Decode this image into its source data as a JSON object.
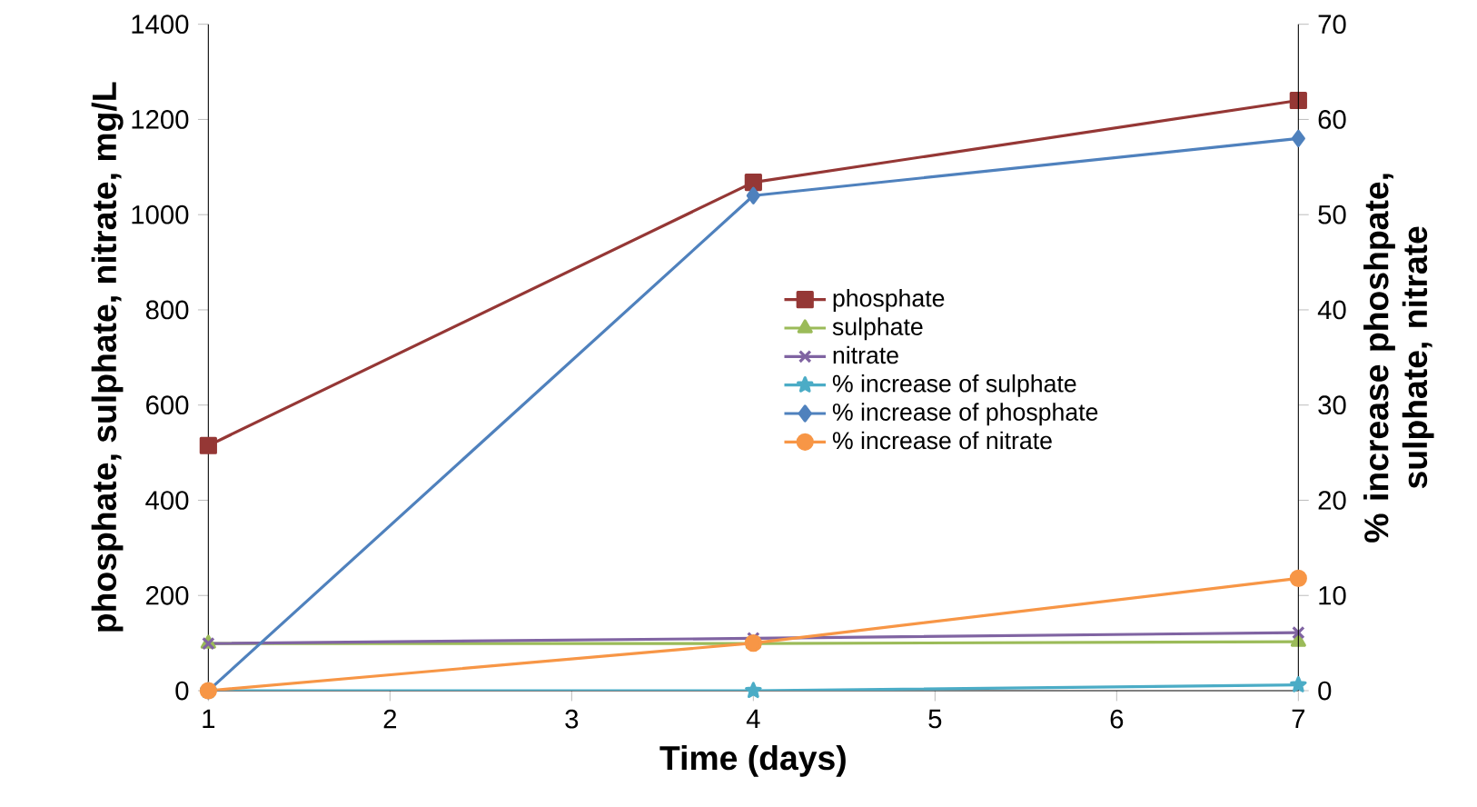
{
  "chart_data": {
    "type": "line",
    "xlabel": "Time (days)",
    "ylabel": "phosphate,  sulphate,  nitrate,  mg/L",
    "y2label": "% increase phoshpate, sulphate, nitrate",
    "xlim": [
      1,
      7
    ],
    "xticks": [
      1,
      2,
      3,
      4,
      5,
      6,
      7
    ],
    "ylim": [
      0,
      1400
    ],
    "yticks": [
      0,
      200,
      400,
      600,
      800,
      1000,
      1200,
      1400
    ],
    "y2lim": [
      0,
      70
    ],
    "y2ticks": [
      0,
      10,
      20,
      30,
      40,
      50,
      60,
      70
    ],
    "grid": false,
    "legend": "right",
    "line_style": "solid",
    "series": [
      {
        "name": "phosphate",
        "color": "#953735",
        "marker": "square",
        "axis": "y",
        "x": [
          1,
          4,
          7
        ],
        "values": [
          515,
          1068,
          1240
        ]
      },
      {
        "name": "sulphate",
        "color": "#9bbb59",
        "marker": "triangle",
        "axis": "y",
        "x": [
          1,
          4,
          7
        ],
        "values": [
          99,
          99,
          103
        ]
      },
      {
        "name": "nitrate",
        "color": "#8064a2",
        "marker": "cross",
        "axis": "y",
        "x": [
          1,
          4,
          7
        ],
        "values": [
          99,
          110,
          122
        ]
      },
      {
        "name": "% increase of sulphate",
        "color": "#4bacc6",
        "marker": "star",
        "axis": "y2",
        "x": [
          1,
          4,
          7
        ],
        "values": [
          0,
          0,
          0.6
        ]
      },
      {
        "name": "% increase of  phosphate",
        "color": "#4f81bd",
        "marker": "diamond",
        "axis": "y2",
        "x": [
          1,
          4,
          7
        ],
        "values": [
          0,
          52,
          58
        ]
      },
      {
        "name": "% increase of  nitrate",
        "color": "#f79646",
        "marker": "circle",
        "axis": "y2",
        "x": [
          1,
          4,
          7
        ],
        "values": [
          0,
          5,
          11.8
        ]
      }
    ]
  }
}
